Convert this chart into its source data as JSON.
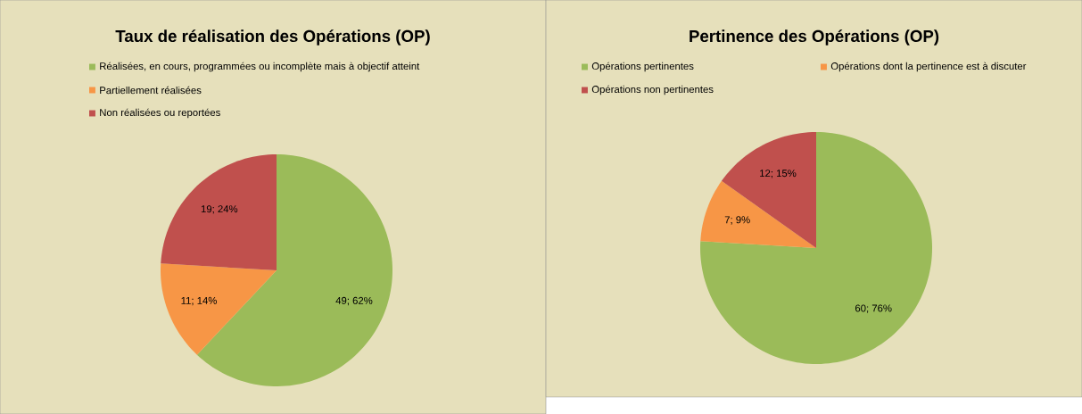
{
  "chart_data": [
    {
      "type": "pie",
      "title": "Taux de réalisation des Opérations (OP)",
      "categories": [
        "Réalisées, en cours, programmées ou incomplète mais à objectif atteint",
        "Partiellement réalisées",
        "Non réalisées ou reportées"
      ],
      "values": [
        49,
        11,
        19
      ],
      "colors": [
        "#9bbb59",
        "#f79646",
        "#c0504d"
      ],
      "value_labels": [
        "49; 62%",
        "11; 14%",
        "19; 24%"
      ],
      "legend": "top"
    },
    {
      "type": "pie",
      "title": "Pertinence des Opérations (OP)",
      "categories": [
        "Opérations pertinentes",
        "Opérations dont la pertinence est à discuter",
        "Opérations non pertinentes"
      ],
      "values": [
        60,
        7,
        12
      ],
      "colors": [
        "#9bbb59",
        "#f79646",
        "#c0504d"
      ],
      "value_labels": [
        "60; 76%",
        "7; 9%",
        "12; 15%"
      ],
      "legend": "top"
    }
  ]
}
